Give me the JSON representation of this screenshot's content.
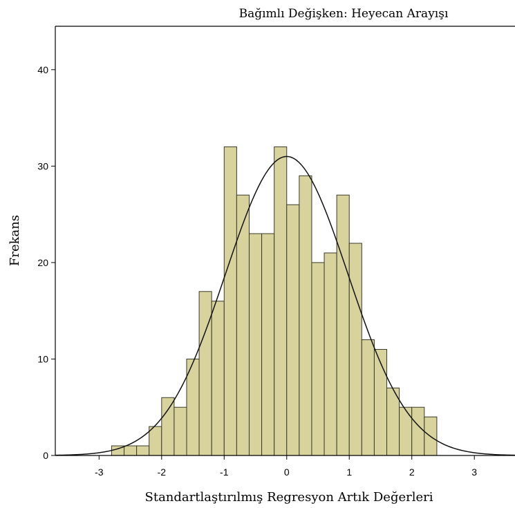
{
  "chart_data": {
    "type": "bar",
    "title": "Bağımlı Değişken: Heyecan Arayışı",
    "xlabel": "Standartlaştırılmış Regresyon Artık Değerleri",
    "ylabel": "Frekans",
    "xlim": [
      -3.7,
      3.65
    ],
    "ylim": [
      0,
      44.5
    ],
    "xticks": [
      -3,
      -2,
      -1,
      0,
      1,
      2,
      3
    ],
    "yticks": [
      0,
      10,
      20,
      30,
      40
    ],
    "bin_width": 0.2,
    "bin_edges_start": -2.8,
    "values": [
      1,
      1,
      1,
      3,
      6,
      5,
      10,
      17,
      16,
      32,
      27,
      23,
      23,
      32,
      26,
      29,
      20,
      21,
      27,
      22,
      12,
      11,
      7,
      5,
      5,
      4
    ],
    "normal_curve": {
      "mean": 0,
      "std_dev": 0.98,
      "peak": 31
    },
    "bar_color": "#d8d29d",
    "bar_stroke": "#3a3a2a",
    "curve_color": "#111111",
    "grid": false
  }
}
